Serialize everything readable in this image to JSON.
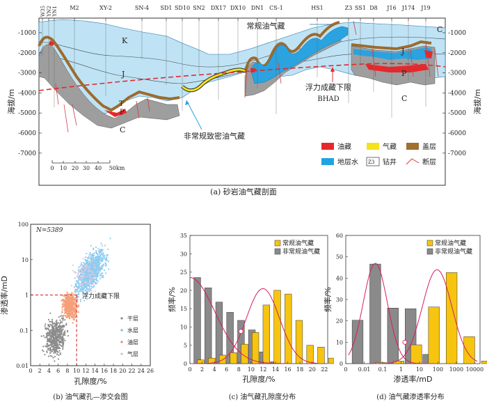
{
  "panel_a": {
    "caption": "(a) 砂岩油气藏剖面",
    "ylabel": "海拔/m",
    "yticks": [
      "-1000",
      "-2000",
      "-3000",
      "-4000",
      "-5000",
      "-6000",
      "-7000"
    ],
    "wells": [
      "W35",
      "YN2",
      "YN1",
      "M2",
      "XY-2",
      "SN-4",
      "SD1",
      "SD10",
      "SN2",
      "DX17",
      "DX10",
      "DN1",
      "CS-1",
      "HS1",
      "Z3",
      "SS1",
      "D8",
      "J16",
      "J174",
      "J19"
    ],
    "strata": [
      "K",
      "J",
      "T",
      "P",
      "C",
      "J",
      "P",
      "C",
      "C"
    ],
    "annotations": {
      "conventional": "常规油气藏",
      "unconventional": "非常规致密油气藏",
      "bhad_cn": "浮力成藏下限",
      "bhad_en": "BHAD"
    },
    "scale": {
      "ticks": [
        "0",
        "10",
        "20",
        "30",
        "40",
        "50km"
      ]
    },
    "legend": [
      {
        "label": "油藏",
        "color": "#e5282c"
      },
      {
        "label": "气藏",
        "color": "#f4e21a"
      },
      {
        "label": "盖层",
        "color": "#a07030"
      },
      {
        "label": "地层水",
        "color": "#1fa4e0"
      },
      {
        "label": "钻井",
        "icon": "Z3"
      },
      {
        "label": "断层",
        "color": "#d63a3a"
      }
    ]
  },
  "panel_b": {
    "caption": "(b) 油气藏孔—渗交会图",
    "n_label": "N=5389",
    "xlabel": "孔隙度/%",
    "ylabel": "渗透率/mD",
    "threshold_label": "浮力成藏下限",
    "legend": [
      {
        "label": "干层",
        "color": "#888888"
      },
      {
        "label": "水层",
        "color": "#8ecdf0"
      },
      {
        "label": "油层",
        "color": "#f5a07a"
      },
      {
        "label": "气层",
        "color": "#e8d8e8"
      }
    ],
    "chart_data": {
      "type": "scatter",
      "x_range": [
        0,
        26
      ],
      "y_range_log": [
        0.01,
        100
      ],
      "x_ticks": [
        0,
        2,
        4,
        6,
        8,
        10,
        12,
        14,
        16,
        18,
        20,
        22,
        24,
        26
      ],
      "y_ticks": [
        "0.01",
        "0.1",
        "1",
        "10",
        "100"
      ],
      "threshold": {
        "porosity": 10,
        "permeability": 1
      }
    }
  },
  "panel_c": {
    "caption": "(c) 油气藏孔隙度分布",
    "chart_data": {
      "type": "bar",
      "xlabel": "孔隙度/%",
      "ylabel": "频率/%",
      "categories": [
        "0",
        "2",
        "4",
        "6",
        "8",
        "10",
        "12",
        "14",
        "16",
        "18",
        "20",
        "22"
      ],
      "x_ticks": [
        "0",
        "2",
        "4",
        "6",
        "8",
        "10",
        "12",
        "14",
        "16",
        "18",
        "20",
        "22"
      ],
      "y_ticks": [
        "0",
        "5",
        "10",
        "15",
        "20",
        "25",
        "30",
        "35"
      ],
      "ylim": [
        0,
        35
      ],
      "series": [
        {
          "name": "非常规油气藏",
          "color": "#8a8a8a",
          "values": [
            23.5,
            20.7,
            16.8,
            14.0,
            11.8,
            9.2,
            3.2,
            0.5,
            0,
            0,
            0,
            0
          ]
        },
        {
          "name": "常规油气藏",
          "color": "#f7c410",
          "values": [
            1.0,
            1.5,
            2.3,
            3.0,
            5.3,
            8.5,
            16.0,
            20.0,
            19.0,
            11.8,
            5.0,
            4.5
          ]
        }
      ],
      "tail_value": 1.5
    }
  },
  "panel_d": {
    "caption": "(d) 油气藏渗透率分布",
    "chart_data": {
      "type": "bar",
      "xlabel": "渗透率/mD",
      "ylabel": "频率/%",
      "categories": [
        "0.001",
        "0.01",
        "0.1",
        "1",
        "10",
        "100",
        "1000"
      ],
      "x_ticks": [
        "0",
        "0.01",
        "0.1",
        "1",
        "10",
        "100",
        "1000",
        "10000"
      ],
      "y_ticks": [
        "0",
        "10",
        "20",
        "30",
        "40",
        "50",
        "60"
      ],
      "ylim": [
        0,
        60
      ],
      "series": [
        {
          "name": "非常规油气藏",
          "color": "#8a8a8a",
          "values": [
            20.3,
            46.6,
            26.0,
            25.7,
            4.3,
            0,
            0
          ]
        },
        {
          "name": "常规油气藏",
          "color": "#f7c410",
          "values": [
            0,
            0.5,
            1.2,
            8.8,
            26.5,
            42.6,
            12.6
          ]
        }
      ],
      "tail_value": 1.2
    }
  }
}
